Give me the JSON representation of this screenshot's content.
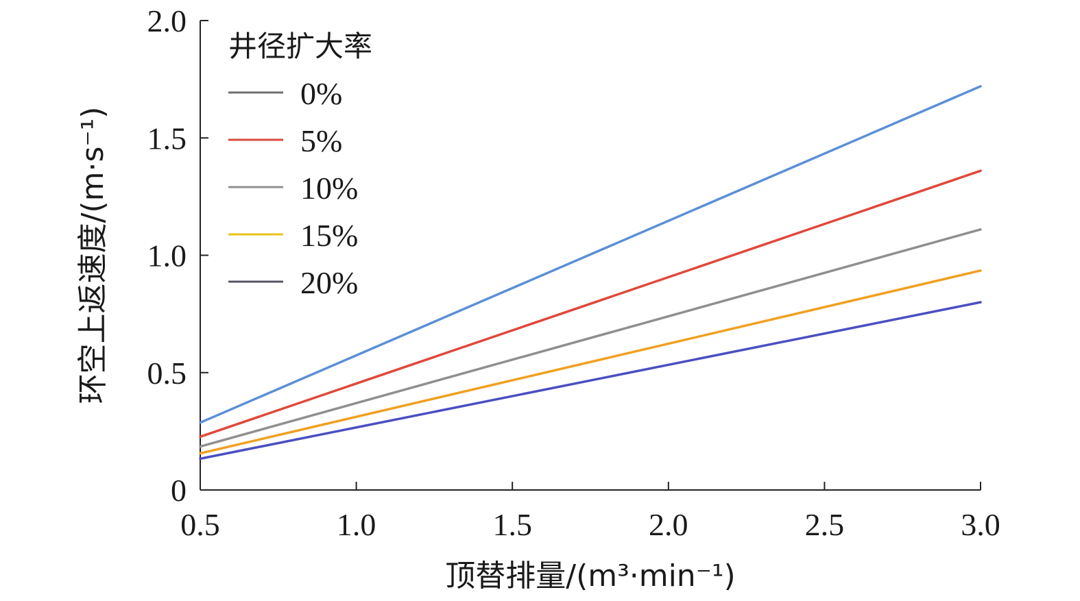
{
  "chart_data": {
    "type": "line",
    "title": "",
    "xlabel": "顶替排量/(m³·min⁻¹)",
    "ylabel": "环空上返速度/(m·s⁻¹)",
    "xlim": [
      0.5,
      3.0
    ],
    "ylim": [
      0,
      2.0
    ],
    "xticks": [
      "0.5",
      "1.0",
      "1.5",
      "2.0",
      "2.5",
      "3.0"
    ],
    "yticks": [
      "0",
      "0.5",
      "1.0",
      "1.5",
      "2.0"
    ],
    "legend_title": "井径扩大率",
    "legend_position": "top-left",
    "grid": false,
    "series": [
      {
        "name": "0%",
        "color": "#5b8fd6",
        "legend_color": "#6f6f6f",
        "x": [
          0.5,
          3.0
        ],
        "y": [
          0.287,
          1.72
        ]
      },
      {
        "name": "5%",
        "color": "#e0483a",
        "legend_color": "#d84a3c",
        "x": [
          0.5,
          3.0
        ],
        "y": [
          0.227,
          1.36
        ]
      },
      {
        "name": "10%",
        "color": "#8f8f8f",
        "legend_color": "#8f8f8f",
        "x": [
          0.5,
          3.0
        ],
        "y": [
          0.185,
          1.11
        ]
      },
      {
        "name": "15%",
        "color": "#f0a020",
        "legend_color": "#e8c419",
        "x": [
          0.5,
          3.0
        ],
        "y": [
          0.156,
          0.935
        ]
      },
      {
        "name": "20%",
        "color": "#4a4fc2",
        "legend_color": "#555566",
        "x": [
          0.5,
          3.0
        ],
        "y": [
          0.133,
          0.8
        ]
      }
    ]
  }
}
